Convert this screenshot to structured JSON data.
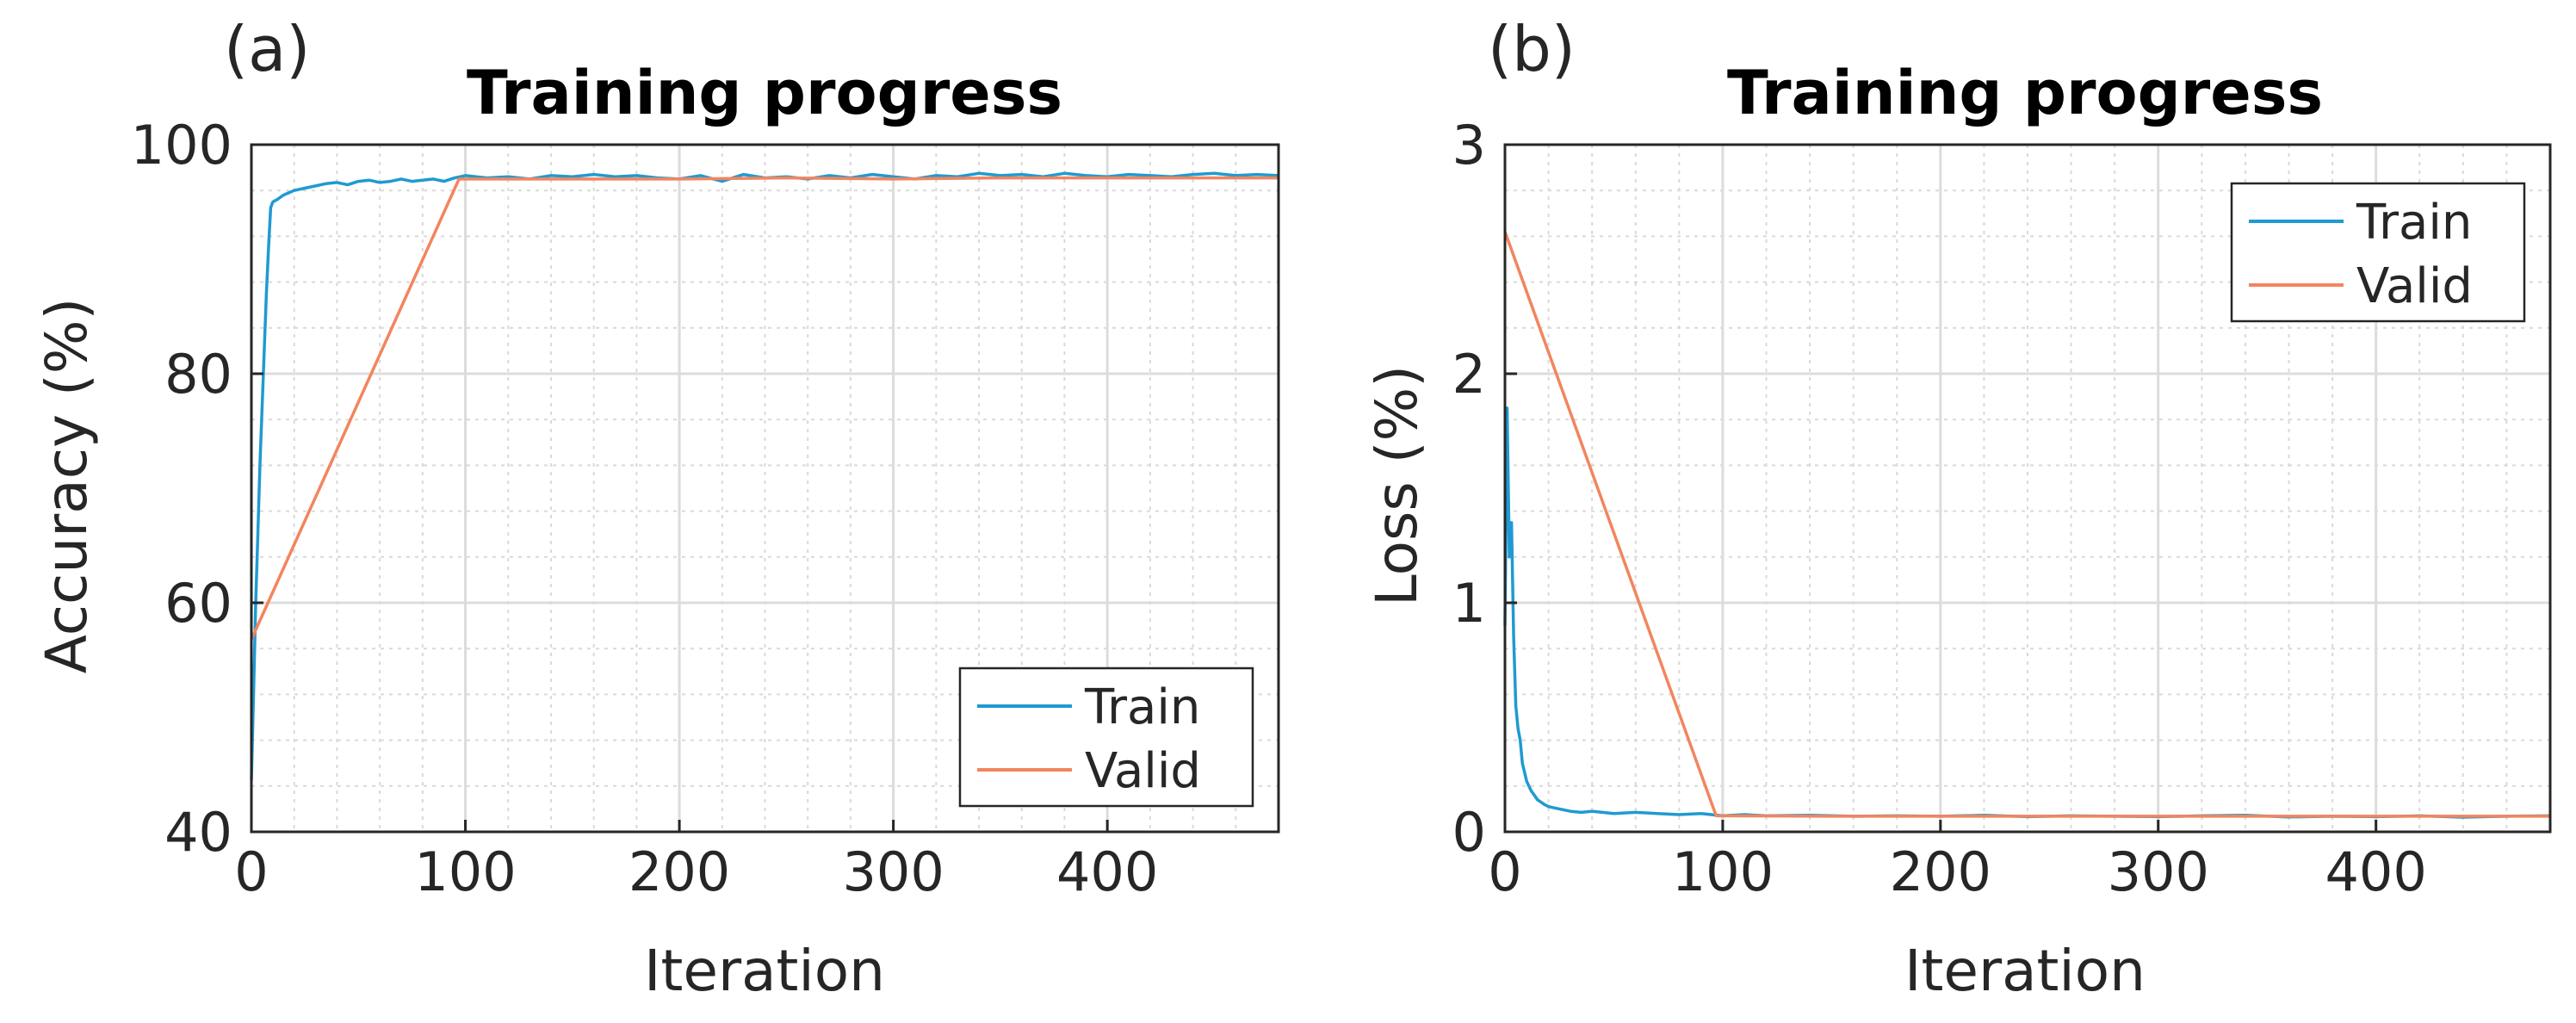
{
  "figure": {
    "panels": [
      "(a)",
      "(b)"
    ]
  },
  "chart_data": [
    {
      "type": "line",
      "panel_label": "(a)",
      "title": "Training progress",
      "xlabel": "Iteration",
      "ylabel": "Accuracy (%)",
      "xlim": [
        0,
        480
      ],
      "ylim": [
        40,
        100
      ],
      "xticks": [
        0,
        100,
        200,
        300,
        400
      ],
      "yticks": [
        40,
        60,
        80,
        100
      ],
      "grid": true,
      "minor_grid": true,
      "legend_position": "bottom-right",
      "series": [
        {
          "name": "Train",
          "color": "#1f9ad2",
          "x": [
            0,
            1,
            2,
            3,
            4,
            5,
            6,
            7,
            8,
            9,
            10,
            12,
            15,
            20,
            25,
            30,
            35,
            40,
            45,
            50,
            55,
            60,
            65,
            70,
            75,
            80,
            85,
            90,
            95,
            100,
            110,
            120,
            130,
            140,
            150,
            160,
            170,
            180,
            190,
            200,
            210,
            220,
            230,
            240,
            250,
            260,
            270,
            280,
            290,
            300,
            310,
            320,
            330,
            340,
            350,
            360,
            370,
            380,
            390,
            400,
            410,
            420,
            430,
            440,
            450,
            460,
            470,
            480
          ],
          "values": [
            44.5,
            52.0,
            60.0,
            66.0,
            72.0,
            77.0,
            82.0,
            87.0,
            91.0,
            94.5,
            95.0,
            95.2,
            95.6,
            96.0,
            96.2,
            96.4,
            96.6,
            96.7,
            96.5,
            96.8,
            96.9,
            96.7,
            96.8,
            97.0,
            96.8,
            96.9,
            97.0,
            96.8,
            97.1,
            97.3,
            97.1,
            97.2,
            97.0,
            97.3,
            97.2,
            97.4,
            97.2,
            97.3,
            97.1,
            97.0,
            97.3,
            96.8,
            97.4,
            97.1,
            97.2,
            97.0,
            97.3,
            97.1,
            97.4,
            97.2,
            97.0,
            97.3,
            97.2,
            97.5,
            97.3,
            97.4,
            97.2,
            97.5,
            97.3,
            97.2,
            97.4,
            97.3,
            97.2,
            97.4,
            97.5,
            97.3,
            97.4,
            97.3
          ]
        },
        {
          "name": "Valid",
          "color": "#f2855e",
          "x": [
            0,
            97,
            150,
            200,
            250,
            300,
            350,
            400,
            450,
            480
          ],
          "values": [
            56.8,
            97.0,
            97.0,
            97.0,
            97.1,
            97.0,
            97.1,
            97.1,
            97.1,
            97.1
          ]
        }
      ]
    },
    {
      "type": "line",
      "panel_label": "(b)",
      "title": "Training progress",
      "xlabel": "Iteration",
      "ylabel": "Loss (%)",
      "xlim": [
        0,
        480
      ],
      "ylim": [
        0,
        3
      ],
      "xticks": [
        0,
        100,
        200,
        300,
        400
      ],
      "yticks": [
        0,
        1,
        2,
        3
      ],
      "grid": true,
      "minor_grid": true,
      "legend_position": "top-right",
      "series": [
        {
          "name": "Train",
          "color": "#1f9ad2",
          "x": [
            0,
            1,
            2,
            3,
            4,
            5,
            6,
            7,
            8,
            10,
            12,
            15,
            18,
            20,
            25,
            30,
            35,
            40,
            50,
            60,
            70,
            80,
            90,
            100,
            110,
            120,
            140,
            160,
            180,
            200,
            220,
            240,
            260,
            280,
            300,
            320,
            340,
            360,
            380,
            400,
            420,
            440,
            460,
            480
          ],
          "values": [
            0.9,
            1.85,
            1.2,
            1.35,
            0.85,
            0.55,
            0.45,
            0.4,
            0.3,
            0.22,
            0.18,
            0.14,
            0.12,
            0.11,
            0.1,
            0.09,
            0.085,
            0.09,
            0.08,
            0.085,
            0.08,
            0.075,
            0.08,
            0.07,
            0.075,
            0.07,
            0.072,
            0.068,
            0.07,
            0.068,
            0.072,
            0.066,
            0.07,
            0.068,
            0.066,
            0.07,
            0.072,
            0.065,
            0.068,
            0.066,
            0.07,
            0.064,
            0.068,
            0.07
          ]
        },
        {
          "name": "Valid",
          "color": "#f2855e",
          "x": [
            0,
            97,
            150,
            200,
            250,
            300,
            350,
            400,
            450,
            480
          ],
          "values": [
            2.62,
            0.07,
            0.068,
            0.068,
            0.068,
            0.068,
            0.068,
            0.068,
            0.068,
            0.068
          ]
        }
      ]
    }
  ]
}
